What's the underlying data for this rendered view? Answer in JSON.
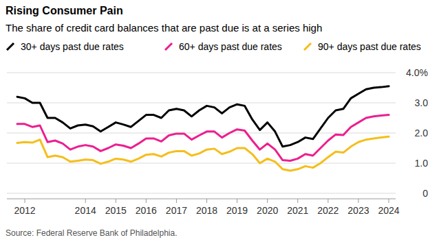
{
  "chart_data": {
    "type": "line",
    "title": "Rising Consumer Pain",
    "subtitle": "The share of credit card balances that are past due is at a series high",
    "source": "Source: Federal Reserve Bank of Philadelphia.",
    "categories": [
      null,
      "2012",
      null,
      null,
      null,
      null,
      null,
      null,
      null,
      "2014",
      null,
      null,
      null,
      "2015",
      null,
      null,
      null,
      "2016",
      null,
      null,
      null,
      "2017",
      null,
      null,
      null,
      "2018",
      null,
      null,
      null,
      "2019",
      null,
      null,
      null,
      "2020",
      null,
      null,
      null,
      "2021",
      null,
      null,
      null,
      "2022",
      null,
      null,
      null,
      "2023",
      null,
      null,
      null,
      "2024"
    ],
    "series": [
      {
        "name": "30+ days past due rates",
        "color": "#000000",
        "values": [
          3.2,
          3.15,
          3.0,
          3.0,
          2.5,
          2.5,
          2.35,
          2.15,
          2.25,
          2.28,
          2.22,
          2.05,
          2.2,
          2.35,
          2.28,
          2.2,
          2.4,
          2.6,
          2.6,
          2.5,
          2.75,
          2.8,
          2.75,
          2.55,
          2.75,
          2.9,
          2.85,
          2.65,
          2.85,
          2.95,
          2.9,
          2.45,
          2.1,
          2.35,
          2.05,
          1.55,
          1.6,
          1.7,
          1.85,
          1.8,
          2.15,
          2.5,
          2.75,
          2.8,
          3.15,
          3.3,
          3.45,
          3.5,
          3.52,
          3.55
        ]
      },
      {
        "name": "60+ days past due rates",
        "color": "#ec1f8f",
        "values": [
          2.3,
          2.3,
          2.2,
          2.25,
          1.7,
          1.75,
          1.65,
          1.45,
          1.55,
          1.6,
          1.55,
          1.4,
          1.5,
          1.62,
          1.58,
          1.5,
          1.65,
          1.82,
          1.82,
          1.72,
          1.92,
          1.98,
          1.98,
          1.78,
          1.92,
          2.05,
          2.05,
          1.85,
          2.0,
          2.12,
          2.08,
          1.75,
          1.45,
          1.65,
          1.45,
          1.1,
          1.08,
          1.15,
          1.3,
          1.25,
          1.5,
          1.75,
          1.95,
          1.93,
          2.2,
          2.35,
          2.5,
          2.55,
          2.58,
          2.6
        ]
      },
      {
        "name": "90+ days past due rates",
        "color": "#f5be1b",
        "values": [
          1.67,
          1.7,
          1.68,
          1.78,
          1.2,
          1.25,
          1.2,
          1.05,
          1.08,
          1.12,
          1.1,
          0.98,
          1.05,
          1.15,
          1.12,
          1.05,
          1.15,
          1.28,
          1.3,
          1.22,
          1.35,
          1.4,
          1.4,
          1.25,
          1.32,
          1.45,
          1.48,
          1.3,
          1.38,
          1.5,
          1.5,
          1.3,
          1.0,
          1.15,
          1.05,
          0.8,
          0.75,
          0.8,
          0.9,
          0.85,
          1.0,
          1.2,
          1.38,
          1.35,
          1.55,
          1.7,
          1.78,
          1.82,
          1.85,
          1.88
        ]
      }
    ],
    "ylim": [
      0,
      4
    ],
    "yticks": [
      0,
      {
        "value": 1,
        "label": "1.0"
      },
      {
        "value": 2,
        "label": "2.0"
      },
      {
        "value": 3,
        "label": "3.0"
      },
      {
        "value": 4,
        "label": "4.0%"
      }
    ],
    "grid": true,
    "legend": "top"
  }
}
